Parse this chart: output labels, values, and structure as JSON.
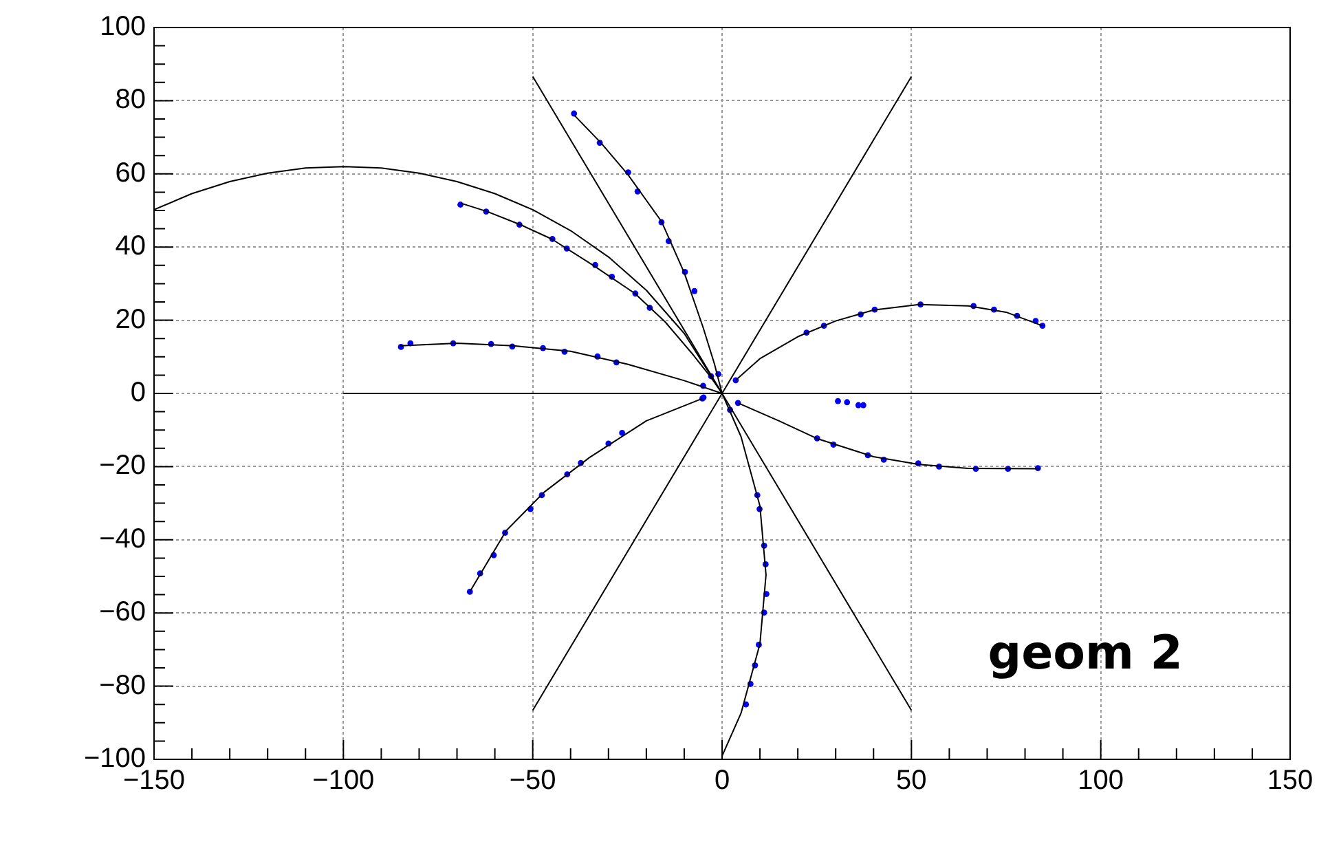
{
  "chart_data": {
    "type": "scatter",
    "grid": true,
    "marker": "circle",
    "line_style": "solid",
    "annotations": [
      "geom 2"
    ],
    "xlim": [
      -150,
      150
    ],
    "ylim": [
      -100,
      100
    ],
    "xticks": [
      {
        "value": -150,
        "label": "−150"
      },
      {
        "value": -140,
        "label": null
      },
      {
        "value": -130,
        "label": null
      },
      {
        "value": -120,
        "label": null
      },
      {
        "value": -110,
        "label": null
      },
      {
        "value": -100,
        "label": "−100"
      },
      {
        "value": -90,
        "label": null
      },
      {
        "value": -80,
        "label": null
      },
      {
        "value": -70,
        "label": null
      },
      {
        "value": -60,
        "label": null
      },
      {
        "value": -50,
        "label": "−50"
      },
      {
        "value": -40,
        "label": null
      },
      {
        "value": -30,
        "label": null
      },
      {
        "value": -20,
        "label": null
      },
      {
        "value": -10,
        "label": null
      },
      0,
      {
        "value": 10,
        "label": null
      },
      {
        "value": 20,
        "label": null
      },
      {
        "value": 30,
        "label": null
      },
      {
        "value": 40,
        "label": null
      },
      50,
      {
        "value": 60,
        "label": null
      },
      {
        "value": 70,
        "label": null
      },
      {
        "value": 80,
        "label": null
      },
      {
        "value": 90,
        "label": null
      },
      100,
      {
        "value": 110,
        "label": null
      },
      {
        "value": 120,
        "label": null
      },
      {
        "value": 130,
        "label": null
      },
      {
        "value": 140,
        "label": null
      },
      150
    ],
    "yticks": [
      {
        "value": -100,
        "label": "−100"
      },
      {
        "value": -95,
        "label": null
      },
      {
        "value": -90,
        "label": null
      },
      {
        "value": -85,
        "label": null
      },
      {
        "value": -80,
        "label": "−80"
      },
      {
        "value": -75,
        "label": null
      },
      {
        "value": -70,
        "label": null
      },
      {
        "value": -65,
        "label": null
      },
      {
        "value": -60,
        "label": "−60"
      },
      {
        "value": -55,
        "label": null
      },
      {
        "value": -50,
        "label": null
      },
      {
        "value": -45,
        "label": null
      },
      {
        "value": -40,
        "label": "−40"
      },
      {
        "value": -35,
        "label": null
      },
      {
        "value": -30,
        "label": null
      },
      {
        "value": -25,
        "label": null
      },
      {
        "value": -20,
        "label": "−20"
      },
      {
        "value": -15,
        "label": null
      },
      {
        "value": -10,
        "label": null
      },
      {
        "value": -5,
        "label": null
      },
      0,
      {
        "value": 5,
        "label": null
      },
      {
        "value": 10,
        "label": null
      },
      {
        "value": 15,
        "label": null
      },
      20,
      {
        "value": 25,
        "label": null
      },
      {
        "value": 30,
        "label": null
      },
      {
        "value": 35,
        "label": null
      },
      40,
      {
        "value": 45,
        "label": null
      },
      {
        "value": 50,
        "label": null
      },
      {
        "value": 55,
        "label": null
      },
      60,
      {
        "value": 65,
        "label": null
      },
      {
        "value": 70,
        "label": null
      },
      {
        "value": 75,
        "label": null
      },
      80,
      {
        "value": 85,
        "label": null
      },
      {
        "value": 90,
        "label": null
      },
      {
        "value": 95,
        "label": null
      },
      100
    ],
    "series": [
      {
        "type": "line",
        "color": "#000000",
        "marker": "none",
        "x": [
          -150,
          -140,
          -130,
          -120,
          -110,
          -100,
          -90,
          -80,
          -70,
          -60,
          -50,
          -40,
          -30,
          -20,
          -10,
          0,
          5,
          10,
          11.6,
          10,
          5,
          0
        ],
        "values": [
          50.2,
          54.6,
          57.9,
          60.2,
          61.6,
          62,
          61.6,
          60.2,
          57.9,
          54.6,
          50.2,
          44.5,
          37.3,
          28.2,
          16.4,
          0,
          -11.8,
          -30.8,
          -49.6,
          -68.4,
          -87.4,
          -99.1
        ]
      },
      {
        "type": "line",
        "color": "#000000",
        "marker": "none",
        "x": [
          -39,
          -32,
          -25,
          -16,
          -10,
          -5,
          -2,
          0
        ],
        "values": [
          76,
          68.5,
          60,
          47,
          33,
          18,
          8,
          0
        ]
      },
      {
        "type": "line",
        "color": "#000000",
        "marker": "none",
        "x": [
          -69,
          -62,
          -53,
          -45,
          -34,
          -23,
          -15,
          -8,
          -3,
          0
        ],
        "values": [
          52,
          49.7,
          46,
          42.2,
          35,
          27.3,
          19.5,
          11,
          4.5,
          0
        ]
      },
      {
        "type": "line",
        "color": "#000000",
        "marker": "none",
        "x": [
          -85,
          -70,
          -55,
          -40,
          -25,
          -10,
          0
        ],
        "values": [
          13,
          13.7,
          13,
          11.5,
          8,
          3.5,
          0
        ]
      },
      {
        "type": "line",
        "color": "#000000",
        "marker": "none",
        "x": [
          3.6,
          10,
          20,
          30,
          40,
          52,
          65,
          75,
          84.6
        ],
        "values": [
          3.6,
          9.5,
          15.5,
          19.8,
          22.8,
          24.3,
          23.9,
          22.2,
          18.5
        ]
      },
      {
        "type": "line",
        "color": "#000000",
        "marker": "none",
        "x": [
          4.2,
          15,
          25,
          40,
          52,
          65,
          84
        ],
        "values": [
          -2.6,
          -7.5,
          -12.3,
          -17.3,
          -19.4,
          -20.5,
          -20.6
        ]
      },
      {
        "type": "line",
        "color": "#000000",
        "marker": "none",
        "x": [
          -66.6,
          -57,
          -47,
          -35,
          -20,
          -5.2
        ],
        "values": [
          -54.2,
          -37.5,
          -27,
          -17.5,
          -7.5,
          -1.4
        ]
      },
      {
        "type": "line",
        "color": "#000000",
        "marker": "none",
        "x": [
          -50,
          50
        ],
        "values": [
          86.6,
          -86.6
        ]
      },
      {
        "type": "line",
        "color": "#000000",
        "marker": "none",
        "x": [
          -50,
          50
        ],
        "values": [
          -86.6,
          86.6
        ]
      },
      {
        "type": "line",
        "color": "#000000",
        "marker": "none",
        "x": [
          -100,
          100
        ],
        "values": [
          0,
          0
        ]
      },
      {
        "type": "scatter",
        "color": "#0000ff",
        "x": [
          -39.1,
          -32.3,
          -24.8,
          -22.3,
          -16,
          -14.1,
          -9.8,
          -7.3,
          -1,
          -2.9,
          -69.1,
          -62.3,
          -53.5,
          -44.8,
          -41,
          -33.5,
          -29.1,
          -22.9,
          -19.1,
          -5,
          -84.8,
          -82.3,
          -71,
          -61,
          -55.4,
          -47.3,
          -41.6,
          -32.9,
          -27.9,
          3.6,
          22.3,
          26.9,
          36.6,
          40.3,
          52.4,
          66.4,
          71.8,
          77.9,
          82.8,
          84.6,
          4.2,
          25.1,
          29.4,
          38.5,
          42.7,
          51.8,
          57.3,
          67,
          75.5,
          83.4,
          30.6,
          33,
          36,
          37.3,
          -4.9,
          2.1,
          -5.2,
          -26.4,
          -30,
          -37.3,
          -40.9,
          -47.6,
          -50.6,
          -57.3,
          -60.3,
          -63.9,
          -66.6,
          9.3,
          9.9,
          11.1,
          11.5,
          11.7,
          11.1,
          9.7,
          8.7,
          7.5,
          6.3
        ],
        "values": [
          76.5,
          68.5,
          60.4,
          55.2,
          46.8,
          41.6,
          33.2,
          28,
          5.3,
          4.7,
          51.6,
          49.7,
          46.1,
          42.2,
          39.6,
          35.1,
          31.9,
          27.3,
          23.4,
          2.1,
          12.7,
          13.7,
          13.7,
          13.5,
          12.8,
          12.4,
          11.4,
          10.1,
          8.5,
          3.6,
          16.6,
          18.5,
          21.6,
          22.9,
          24.3,
          23.9,
          22.9,
          21.2,
          19.8,
          18.5,
          -2.6,
          -12.3,
          -14,
          -16.9,
          -18.1,
          -19.1,
          -20,
          -20.6,
          -20.6,
          -20.4,
          -2.1,
          -2.4,
          -3.2,
          -3.2,
          -1.1,
          -4.5,
          -1.4,
          -10.8,
          -13.7,
          -19,
          -22.1,
          -27.8,
          -31.6,
          -38.1,
          -44.2,
          -49.2,
          -54.2,
          -27.8,
          -31.6,
          -41.6,
          -46.7,
          -54.8,
          -59.9,
          -68.7,
          -74.3,
          -79.4,
          -85
        ]
      }
    ]
  }
}
